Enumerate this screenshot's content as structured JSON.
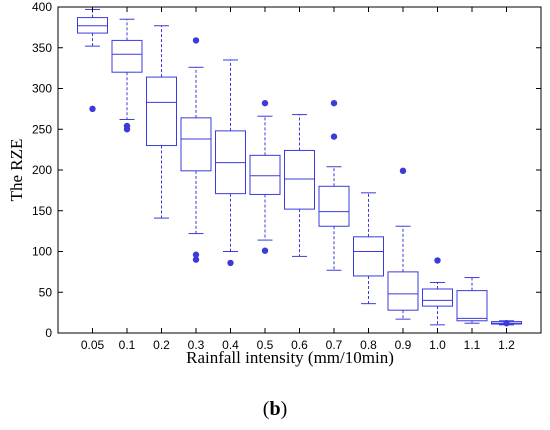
{
  "panel": {
    "open": "(",
    "letter": "b",
    "close": ")"
  },
  "chart_data": {
    "type": "box",
    "xlabel": "Rainfall intensity (mm/10min)",
    "ylabel": "The RZE",
    "ylim": [
      0,
      400
    ],
    "yticks": [
      0,
      50,
      100,
      150,
      200,
      250,
      300,
      350,
      400
    ],
    "grid": false,
    "box_color": "#3b3bdc",
    "categories": [
      "0.05",
      "0.1",
      "0.2",
      "0.3",
      "0.4",
      "0.5",
      "0.6",
      "0.7",
      "0.8",
      "0.9",
      "1.0",
      "1.1",
      "1.2"
    ],
    "boxes": [
      {
        "category": "0.05",
        "whisker_low": 352,
        "q1": 368,
        "median": 377,
        "q3": 387,
        "whisker_high": 397,
        "outliers": [
          275
        ]
      },
      {
        "category": "0.1",
        "whisker_low": 262,
        "q1": 320,
        "median": 342,
        "q3": 359,
        "whisker_high": 385,
        "outliers": [
          254,
          250
        ]
      },
      {
        "category": "0.2",
        "whisker_low": 141,
        "q1": 230,
        "median": 283,
        "q3": 314,
        "whisker_high": 377,
        "outliers": []
      },
      {
        "category": "0.3",
        "whisker_low": 122,
        "q1": 199,
        "median": 238,
        "q3": 264,
        "whisker_high": 326,
        "outliers": [
          359,
          96,
          90
        ]
      },
      {
        "category": "0.4",
        "whisker_low": 100,
        "q1": 171,
        "median": 209,
        "q3": 248,
        "whisker_high": 335,
        "outliers": [
          86
        ]
      },
      {
        "category": "0.5",
        "whisker_low": 114,
        "q1": 170,
        "median": 193,
        "q3": 218,
        "whisker_high": 266,
        "outliers": [
          282,
          101
        ]
      },
      {
        "category": "0.6",
        "whisker_low": 94,
        "q1": 152,
        "median": 189,
        "q3": 224,
        "whisker_high": 268,
        "outliers": []
      },
      {
        "category": "0.7",
        "whisker_low": 77,
        "q1": 131,
        "median": 149,
        "q3": 180,
        "whisker_high": 204,
        "outliers": [
          282,
          241
        ]
      },
      {
        "category": "0.8",
        "whisker_low": 36,
        "q1": 70,
        "median": 100,
        "q3": 118,
        "whisker_high": 172,
        "outliers": []
      },
      {
        "category": "0.9",
        "whisker_low": 17,
        "q1": 28,
        "median": 48,
        "q3": 75,
        "whisker_high": 131,
        "outliers": [
          199
        ]
      },
      {
        "category": "1.0",
        "whisker_low": 10,
        "q1": 33,
        "median": 40,
        "q3": 54,
        "whisker_high": 62,
        "outliers": [
          89
        ]
      },
      {
        "category": "1.1",
        "whisker_low": 12,
        "q1": 15,
        "median": 18,
        "q3": 52,
        "whisker_high": 68,
        "outliers": []
      },
      {
        "category": "1.2",
        "whisker_low": 10,
        "q1": 11,
        "median": 12,
        "q3": 14,
        "whisker_high": 15,
        "outliers": [
          12
        ]
      }
    ]
  }
}
